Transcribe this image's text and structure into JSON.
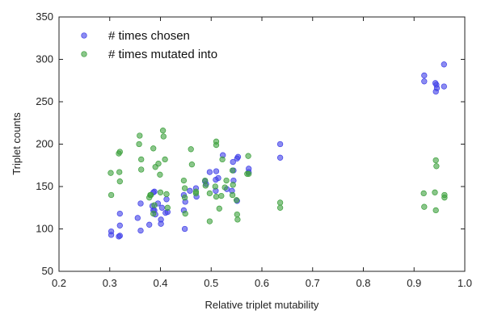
{
  "chart_data": {
    "type": "scatter",
    "xlabel": "Relative triplet mutability",
    "ylabel": "Triplet counts",
    "xlim": [
      0.2,
      1.0
    ],
    "ylim": [
      50,
      350
    ],
    "xticks": [
      "0.2",
      "0.3",
      "0.4",
      "0.5",
      "0.6",
      "0.7",
      "0.8",
      "0.9",
      "1.0"
    ],
    "yticks": [
      "50",
      "100",
      "150",
      "200",
      "250",
      "300",
      "350"
    ],
    "grid": false,
    "legend_position": "top-left",
    "series": [
      {
        "name": "# times chosen",
        "color": "#4040e8",
        "points": [
          [
            0.303,
            97
          ],
          [
            0.303,
            93
          ],
          [
            0.318,
            91
          ],
          [
            0.32,
            118
          ],
          [
            0.32,
            104
          ],
          [
            0.32,
            92
          ],
          [
            0.355,
            113
          ],
          [
            0.361,
            98
          ],
          [
            0.361,
            130
          ],
          [
            0.378,
            105
          ],
          [
            0.384,
            127
          ],
          [
            0.386,
            143
          ],
          [
            0.386,
            122
          ],
          [
            0.388,
            122
          ],
          [
            0.388,
            144
          ],
          [
            0.39,
            117
          ],
          [
            0.395,
            130
          ],
          [
            0.401,
            111
          ],
          [
            0.401,
            106
          ],
          [
            0.403,
            125
          ],
          [
            0.41,
            119
          ],
          [
            0.412,
            135
          ],
          [
            0.414,
            120
          ],
          [
            0.446,
            140
          ],
          [
            0.446,
            122
          ],
          [
            0.448,
            100
          ],
          [
            0.449,
            132
          ],
          [
            0.458,
            145
          ],
          [
            0.47,
            148
          ],
          [
            0.471,
            138
          ],
          [
            0.488,
            156
          ],
          [
            0.49,
            153
          ],
          [
            0.497,
            167
          ],
          [
            0.509,
            158
          ],
          [
            0.509,
            145
          ],
          [
            0.51,
            168
          ],
          [
            0.514,
            160
          ],
          [
            0.523,
            187
          ],
          [
            0.531,
            147
          ],
          [
            0.541,
            145
          ],
          [
            0.543,
            179
          ],
          [
            0.544,
            169
          ],
          [
            0.544,
            157
          ],
          [
            0.551,
            183
          ],
          [
            0.553,
            185
          ],
          [
            0.551,
            133
          ],
          [
            0.574,
            171
          ],
          [
            0.574,
            167
          ],
          [
            0.636,
            200
          ],
          [
            0.636,
            184
          ],
          [
            0.92,
            281
          ],
          [
            0.92,
            274
          ],
          [
            0.942,
            272
          ],
          [
            0.943,
            262
          ],
          [
            0.944,
            270
          ],
          [
            0.945,
            266
          ],
          [
            0.959,
            294
          ],
          [
            0.959,
            268
          ]
        ]
      },
      {
        "name": "# times mutated into",
        "color": "#3ca03c",
        "points": [
          [
            0.302,
            166
          ],
          [
            0.303,
            140
          ],
          [
            0.318,
            189
          ],
          [
            0.32,
            191
          ],
          [
            0.319,
            167
          ],
          [
            0.32,
            156
          ],
          [
            0.359,
            210
          ],
          [
            0.358,
            200
          ],
          [
            0.362,
            182
          ],
          [
            0.362,
            170
          ],
          [
            0.378,
            137
          ],
          [
            0.38,
            140
          ],
          [
            0.381,
            140
          ],
          [
            0.386,
            195
          ],
          [
            0.386,
            118
          ],
          [
            0.388,
            128
          ],
          [
            0.39,
            173
          ],
          [
            0.396,
            177
          ],
          [
            0.399,
            164
          ],
          [
            0.4,
            143
          ],
          [
            0.405,
            216
          ],
          [
            0.406,
            209
          ],
          [
            0.409,
            182
          ],
          [
            0.412,
            141
          ],
          [
            0.414,
            125
          ],
          [
            0.446,
            157
          ],
          [
            0.448,
            148
          ],
          [
            0.448,
            137
          ],
          [
            0.449,
            118
          ],
          [
            0.46,
            194
          ],
          [
            0.462,
            176
          ],
          [
            0.47,
            144
          ],
          [
            0.47,
            142
          ],
          [
            0.488,
            157
          ],
          [
            0.489,
            151
          ],
          [
            0.497,
            142
          ],
          [
            0.497,
            109
          ],
          [
            0.508,
            150
          ],
          [
            0.51,
            138
          ],
          [
            0.51,
            203
          ],
          [
            0.51,
            199
          ],
          [
            0.516,
            124
          ],
          [
            0.52,
            139
          ],
          [
            0.522,
            182
          ],
          [
            0.527,
            149
          ],
          [
            0.53,
            157
          ],
          [
            0.542,
            169
          ],
          [
            0.542,
            140
          ],
          [
            0.543,
            152
          ],
          [
            0.55,
            134
          ],
          [
            0.551,
            117
          ],
          [
            0.552,
            111
          ],
          [
            0.571,
            165
          ],
          [
            0.573,
            186
          ],
          [
            0.574,
            165
          ],
          [
            0.636,
            131
          ],
          [
            0.636,
            125
          ],
          [
            0.919,
            142
          ],
          [
            0.92,
            126
          ],
          [
            0.941,
            143
          ],
          [
            0.943,
            122
          ],
          [
            0.943,
            181
          ],
          [
            0.944,
            174
          ],
          [
            0.96,
            140
          ],
          [
            0.96,
            137
          ]
        ]
      }
    ]
  }
}
